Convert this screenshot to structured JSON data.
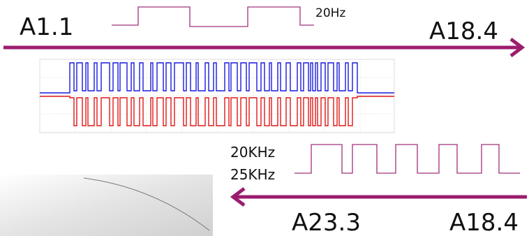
{
  "labels": {
    "top_left": "A1.1",
    "top_right": "A18.4",
    "top_frequency": "20Hz",
    "bottom_frequency_1": "20KHz",
    "bottom_frequency_2": "25KHz",
    "bottom_left": "A23.3",
    "bottom_right": "A18.4"
  }
}
